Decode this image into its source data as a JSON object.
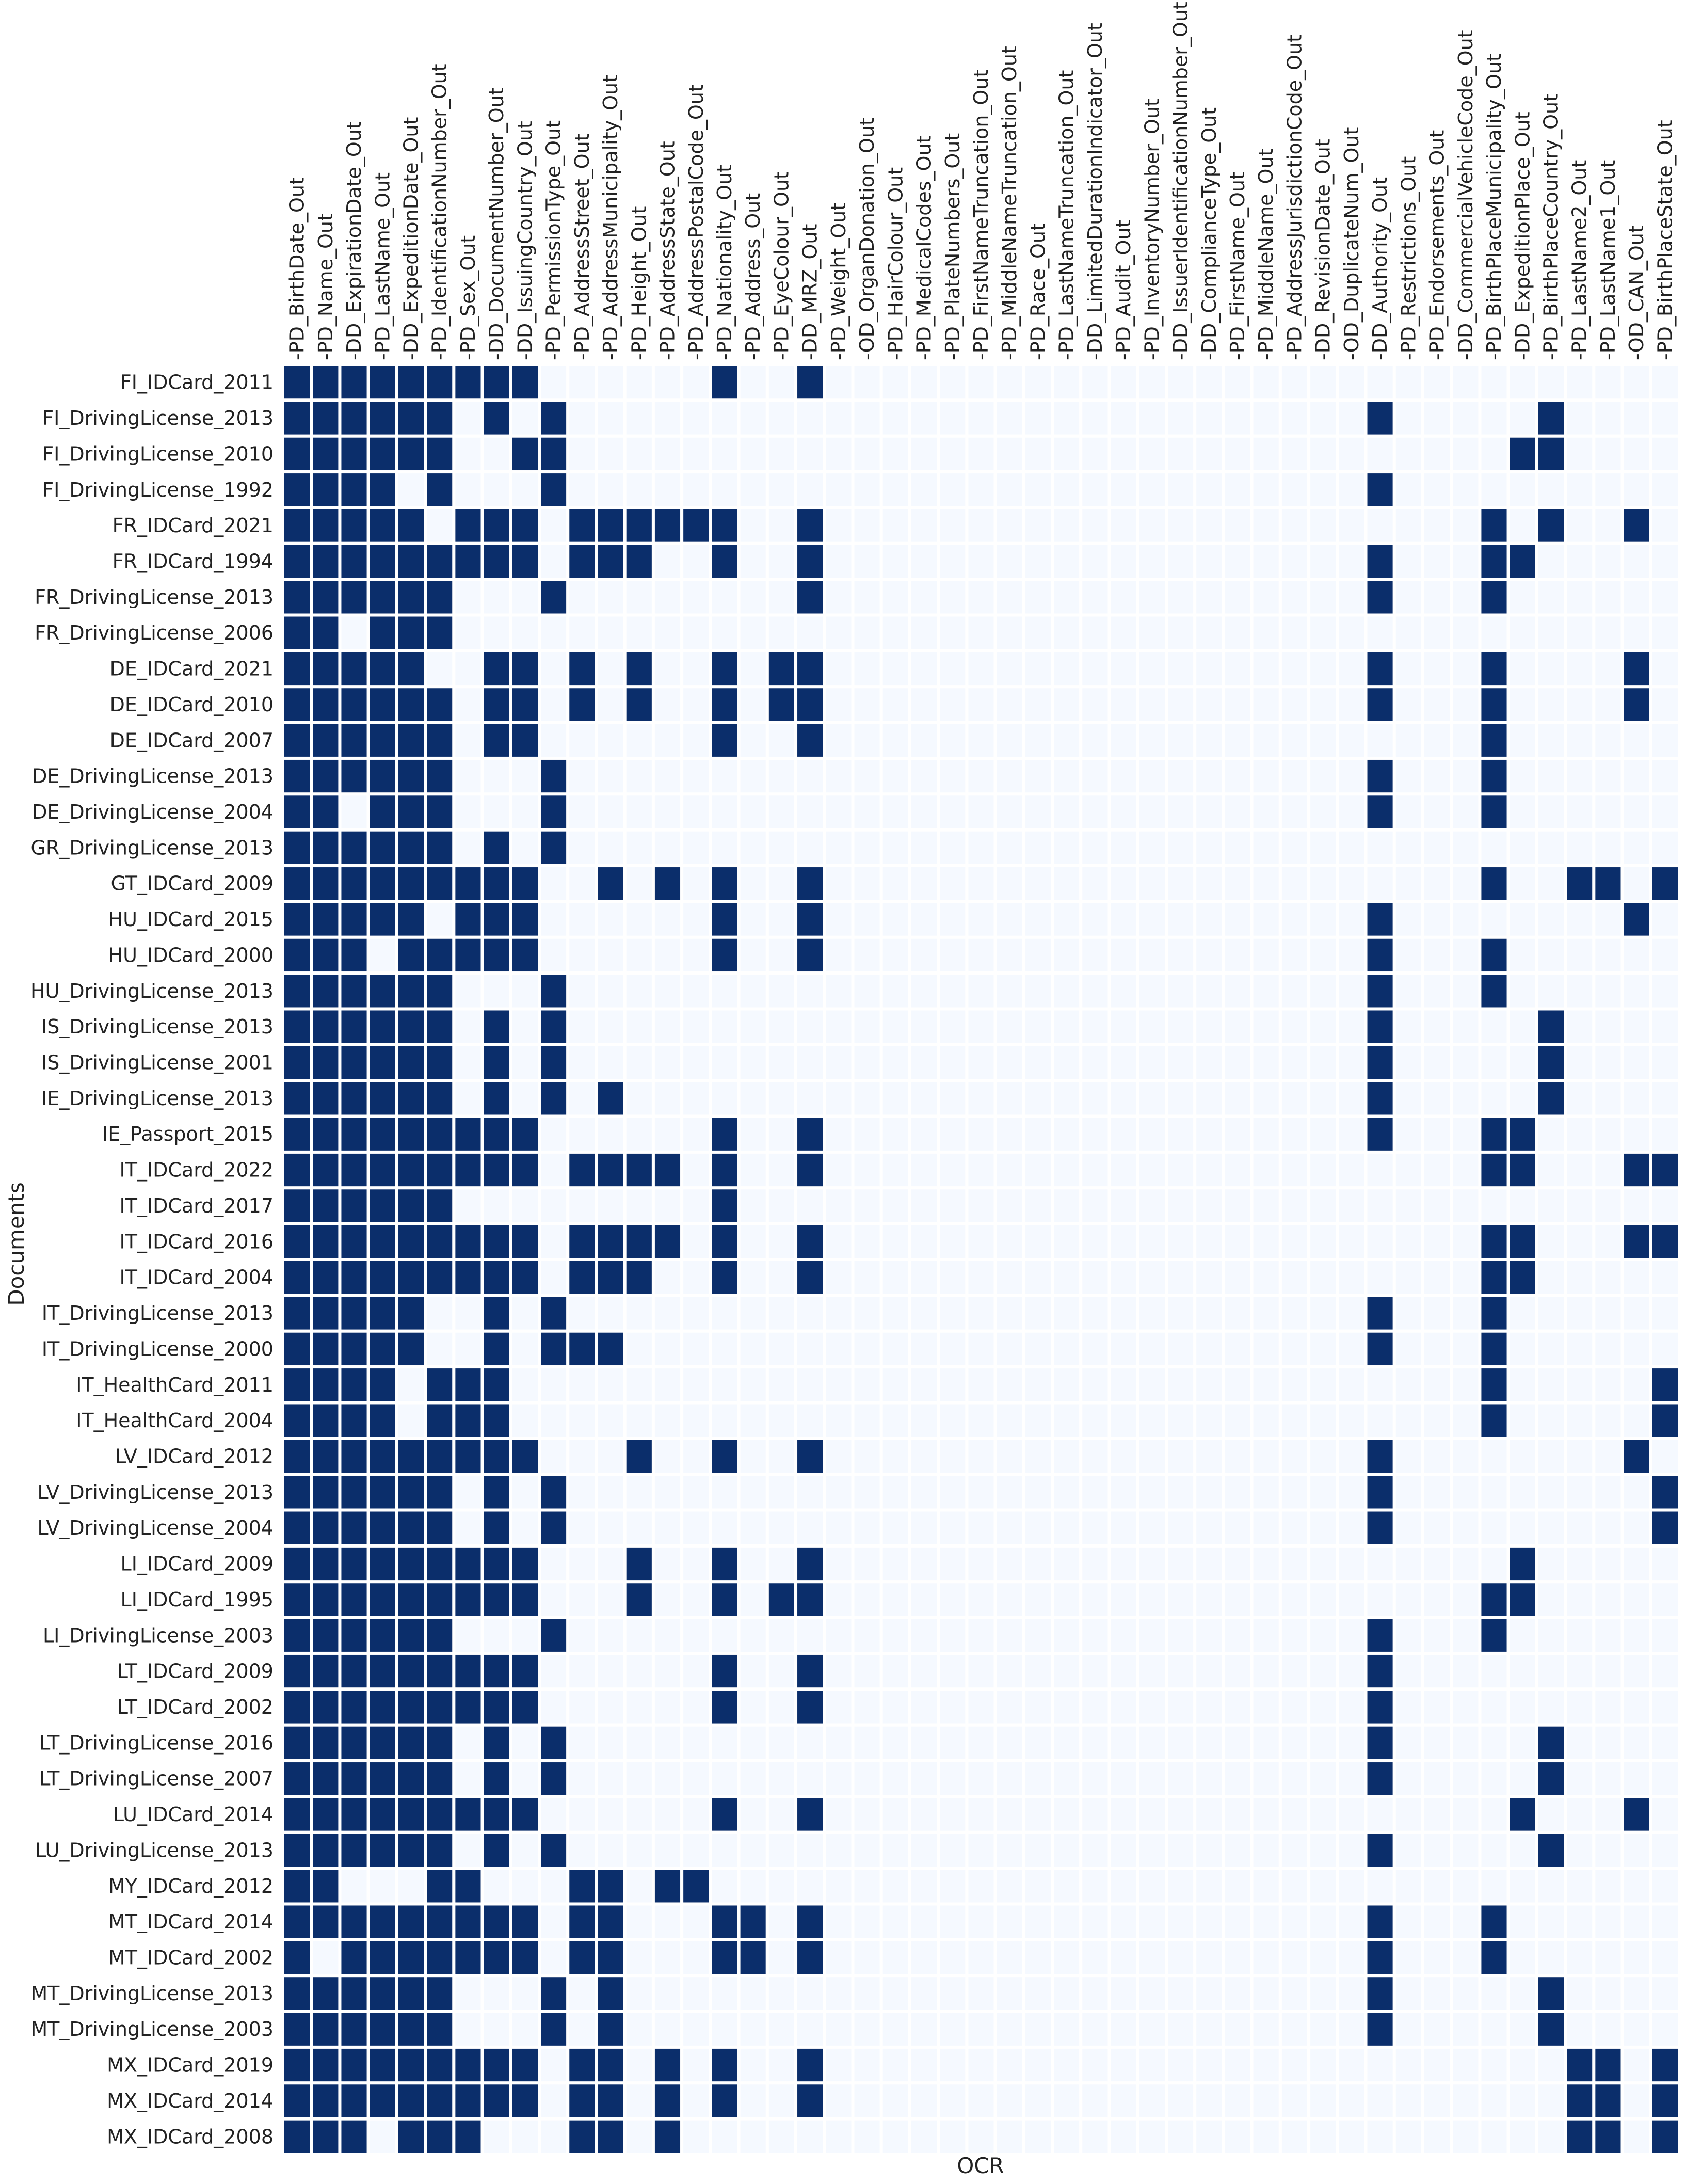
{
  "chart_data": {
    "type": "heatmap",
    "xlabel": "OCR",
    "ylabel": "Documents",
    "colors": {
      "on": "#0b2e6b",
      "off": "#f5f9ff",
      "grid": "#ffffff"
    },
    "columns": [
      "PD_BirthDate_Out",
      "PD_Name_Out",
      "DD_ExpirationDate_Out",
      "PD_LastName_Out",
      "DD_ExpeditionDate_Out",
      "PD_IdentificationNumber_Out",
      "PD_Sex_Out",
      "DD_DocumentNumber_Out",
      "DD_IssuingCountry_Out",
      "PD_PermissionType_Out",
      "PD_AddressStreet_Out",
      "PD_AddressMunicipality_Out",
      "PD_Height_Out",
      "PD_AddressState_Out",
      "PD_AddressPostalCode_Out",
      "PD_Nationality_Out",
      "PD_Address_Out",
      "PD_EyeColour_Out",
      "DD_MRZ_Out",
      "PD_Weight_Out",
      "OD_OrganDonation_Out",
      "PD_HairColour_Out",
      "PD_MedicalCodes_Out",
      "PD_PlateNumbers_Out",
      "PD_FirstNameTruncation_Out",
      "PD_MiddleNameTruncation_Out",
      "PD_Race_Out",
      "PD_LastNameTruncation_Out",
      "DD_LimitedDurationIndicator_Out",
      "PD_Audit_Out",
      "PD_InventoryNumber_Out",
      "DD_IssuerIdentificationNumber_Out",
      "DD_ComplianceType_Out",
      "PD_FirstName_Out",
      "PD_MiddleName_Out",
      "PD_AddressJurisdictionCode_Out",
      "DD_RevisionDate_Out",
      "OD_DuplicateNum_Out",
      "DD_Authority_Out",
      "PD_Restrictions_Out",
      "PD_Endorsements_Out",
      "DD_CommercialVehicleCode_Out",
      "PD_BirthPlaceMunicipality_Out",
      "DD_ExpeditionPlace_Out",
      "PD_BirthPlaceCountry_Out",
      "PD_LastName2_Out",
      "PD_LastName1_Out",
      "OD_CAN_Out",
      "PD_BirthPlaceState_Out"
    ],
    "rows": [
      {
        "name": "FI_IDCard_2011",
        "on": [
          0,
          1,
          2,
          3,
          4,
          5,
          6,
          7,
          8,
          15,
          18
        ]
      },
      {
        "name": "FI_DrivingLicense_2013",
        "on": [
          0,
          1,
          2,
          3,
          4,
          5,
          7,
          9,
          38,
          44
        ]
      },
      {
        "name": "FI_DrivingLicense_2010",
        "on": [
          0,
          1,
          2,
          3,
          4,
          5,
          8,
          9,
          43,
          44
        ]
      },
      {
        "name": "FI_DrivingLicense_1992",
        "on": [
          0,
          1,
          2,
          3,
          5,
          9,
          38
        ]
      },
      {
        "name": "FR_IDCard_2021",
        "on": [
          0,
          1,
          2,
          3,
          4,
          6,
          7,
          8,
          10,
          11,
          12,
          13,
          14,
          15,
          18,
          42,
          44,
          47
        ]
      },
      {
        "name": "FR_IDCard_1994",
        "on": [
          0,
          1,
          2,
          3,
          4,
          5,
          6,
          7,
          8,
          10,
          11,
          12,
          15,
          18,
          38,
          42,
          43
        ]
      },
      {
        "name": "FR_DrivingLicense_2013",
        "on": [
          0,
          1,
          2,
          3,
          4,
          5,
          9,
          18,
          38,
          42
        ]
      },
      {
        "name": "FR_DrivingLicense_2006",
        "on": [
          0,
          1,
          3,
          4,
          5
        ]
      },
      {
        "name": "DE_IDCard_2021",
        "on": [
          0,
          1,
          2,
          3,
          4,
          7,
          8,
          10,
          12,
          15,
          17,
          18,
          38,
          42,
          47
        ]
      },
      {
        "name": "DE_IDCard_2010",
        "on": [
          0,
          1,
          2,
          3,
          4,
          5,
          7,
          8,
          10,
          12,
          15,
          17,
          18,
          38,
          42,
          47
        ]
      },
      {
        "name": "DE_IDCard_2007",
        "on": [
          0,
          1,
          2,
          3,
          4,
          5,
          7,
          8,
          15,
          18,
          42
        ]
      },
      {
        "name": "DE_DrivingLicense_2013",
        "on": [
          0,
          1,
          2,
          3,
          4,
          5,
          9,
          38,
          42
        ]
      },
      {
        "name": "DE_DrivingLicense_2004",
        "on": [
          0,
          1,
          3,
          4,
          5,
          9,
          38,
          42
        ]
      },
      {
        "name": "GR_DrivingLicense_2013",
        "on": [
          0,
          1,
          2,
          3,
          4,
          5,
          7,
          9
        ]
      },
      {
        "name": "GT_IDCard_2009",
        "on": [
          0,
          1,
          2,
          3,
          4,
          5,
          6,
          7,
          8,
          11,
          13,
          15,
          18,
          42,
          45,
          46,
          48
        ]
      },
      {
        "name": "HU_IDCard_2015",
        "on": [
          0,
          1,
          2,
          3,
          4,
          6,
          7,
          8,
          15,
          18,
          38,
          47
        ]
      },
      {
        "name": "HU_IDCard_2000",
        "on": [
          0,
          1,
          2,
          4,
          5,
          6,
          7,
          8,
          15,
          18,
          38,
          42
        ]
      },
      {
        "name": "HU_DrivingLicense_2013",
        "on": [
          0,
          1,
          2,
          3,
          4,
          5,
          9,
          38,
          42
        ]
      },
      {
        "name": "IS_DrivingLicense_2013",
        "on": [
          0,
          1,
          2,
          3,
          4,
          5,
          7,
          9,
          38,
          44
        ]
      },
      {
        "name": "IS_DrivingLicense_2001",
        "on": [
          0,
          1,
          2,
          3,
          4,
          5,
          7,
          9,
          38,
          44
        ]
      },
      {
        "name": "IE_DrivingLicense_2013",
        "on": [
          0,
          1,
          2,
          3,
          4,
          5,
          7,
          9,
          11,
          38,
          44
        ]
      },
      {
        "name": "IE_Passport_2015",
        "on": [
          0,
          1,
          2,
          3,
          4,
          5,
          6,
          7,
          8,
          15,
          18,
          38,
          42,
          43
        ]
      },
      {
        "name": "IT_IDCard_2022",
        "on": [
          0,
          1,
          2,
          3,
          4,
          5,
          6,
          7,
          8,
          10,
          11,
          12,
          13,
          15,
          18,
          42,
          43,
          47,
          48
        ]
      },
      {
        "name": "IT_IDCard_2017",
        "on": [
          0,
          1,
          2,
          3,
          4,
          5,
          15
        ]
      },
      {
        "name": "IT_IDCard_2016",
        "on": [
          0,
          1,
          2,
          3,
          4,
          5,
          6,
          7,
          8,
          10,
          11,
          12,
          13,
          15,
          18,
          42,
          43,
          47,
          48
        ]
      },
      {
        "name": "IT_IDCard_2004",
        "on": [
          0,
          1,
          2,
          3,
          4,
          5,
          6,
          7,
          8,
          10,
          11,
          12,
          15,
          18,
          42,
          43
        ]
      },
      {
        "name": "IT_DrivingLicense_2013",
        "on": [
          0,
          1,
          2,
          3,
          4,
          7,
          9,
          38,
          42
        ]
      },
      {
        "name": "IT_DrivingLicense_2000",
        "on": [
          0,
          1,
          2,
          3,
          4,
          7,
          9,
          10,
          11,
          38,
          42
        ]
      },
      {
        "name": "IT_HealthCard_2011",
        "on": [
          0,
          1,
          2,
          3,
          5,
          6,
          7,
          42,
          48
        ]
      },
      {
        "name": "IT_HealthCard_2004",
        "on": [
          0,
          1,
          2,
          3,
          5,
          6,
          7,
          42,
          48
        ]
      },
      {
        "name": "LV_IDCard_2012",
        "on": [
          0,
          1,
          2,
          3,
          4,
          5,
          6,
          7,
          8,
          12,
          15,
          18,
          38,
          47
        ]
      },
      {
        "name": "LV_DrivingLicense_2013",
        "on": [
          0,
          1,
          2,
          3,
          4,
          5,
          7,
          9,
          38,
          48
        ]
      },
      {
        "name": "LV_DrivingLicense_2004",
        "on": [
          0,
          1,
          2,
          3,
          4,
          5,
          7,
          9,
          38,
          48
        ]
      },
      {
        "name": "LI_IDCard_2009",
        "on": [
          0,
          1,
          2,
          3,
          4,
          5,
          6,
          7,
          8,
          12,
          15,
          18,
          43
        ]
      },
      {
        "name": "LI_IDCard_1995",
        "on": [
          0,
          1,
          2,
          3,
          4,
          5,
          6,
          7,
          8,
          12,
          15,
          17,
          18,
          42,
          43
        ]
      },
      {
        "name": "LI_DrivingLicense_2003",
        "on": [
          0,
          1,
          2,
          3,
          4,
          5,
          9,
          38,
          42
        ]
      },
      {
        "name": "LT_IDCard_2009",
        "on": [
          0,
          1,
          2,
          3,
          4,
          5,
          6,
          7,
          8,
          15,
          18,
          38
        ]
      },
      {
        "name": "LT_IDCard_2002",
        "on": [
          0,
          1,
          2,
          3,
          4,
          5,
          6,
          7,
          8,
          15,
          18,
          38
        ]
      },
      {
        "name": "LT_DrivingLicense_2016",
        "on": [
          0,
          1,
          2,
          3,
          4,
          5,
          7,
          9,
          38,
          44
        ]
      },
      {
        "name": "LT_DrivingLicense_2007",
        "on": [
          0,
          1,
          2,
          3,
          4,
          5,
          7,
          9,
          38,
          44
        ]
      },
      {
        "name": "LU_IDCard_2014",
        "on": [
          0,
          1,
          2,
          3,
          4,
          5,
          6,
          7,
          8,
          15,
          18,
          43,
          47
        ]
      },
      {
        "name": "LU_DrivingLicense_2013",
        "on": [
          0,
          1,
          2,
          3,
          4,
          5,
          7,
          9,
          38,
          44
        ]
      },
      {
        "name": "MY_IDCard_2012",
        "on": [
          0,
          1,
          5,
          6,
          10,
          11,
          13,
          14
        ]
      },
      {
        "name": "MT_IDCard_2014",
        "on": [
          0,
          1,
          2,
          3,
          4,
          5,
          6,
          7,
          8,
          10,
          11,
          15,
          16,
          18,
          38,
          42
        ]
      },
      {
        "name": "MT_IDCard_2002",
        "on": [
          0,
          2,
          3,
          4,
          5,
          6,
          7,
          8,
          10,
          11,
          15,
          16,
          18,
          38,
          42
        ]
      },
      {
        "name": "MT_DrivingLicense_2013",
        "on": [
          0,
          1,
          2,
          3,
          4,
          5,
          9,
          11,
          38,
          44
        ]
      },
      {
        "name": "MT_DrivingLicense_2003",
        "on": [
          0,
          1,
          2,
          3,
          4,
          5,
          9,
          11,
          38,
          44
        ]
      },
      {
        "name": "MX_IDCard_2019",
        "on": [
          0,
          1,
          2,
          3,
          4,
          5,
          6,
          7,
          8,
          10,
          11,
          13,
          15,
          18,
          45,
          46,
          48
        ]
      },
      {
        "name": "MX_IDCard_2014",
        "on": [
          0,
          1,
          2,
          3,
          4,
          5,
          6,
          7,
          8,
          10,
          11,
          13,
          15,
          18,
          45,
          46,
          48
        ]
      },
      {
        "name": "MX_IDCard_2008",
        "on": [
          0,
          1,
          2,
          4,
          5,
          6,
          10,
          11,
          13,
          45,
          46,
          48
        ]
      }
    ]
  }
}
